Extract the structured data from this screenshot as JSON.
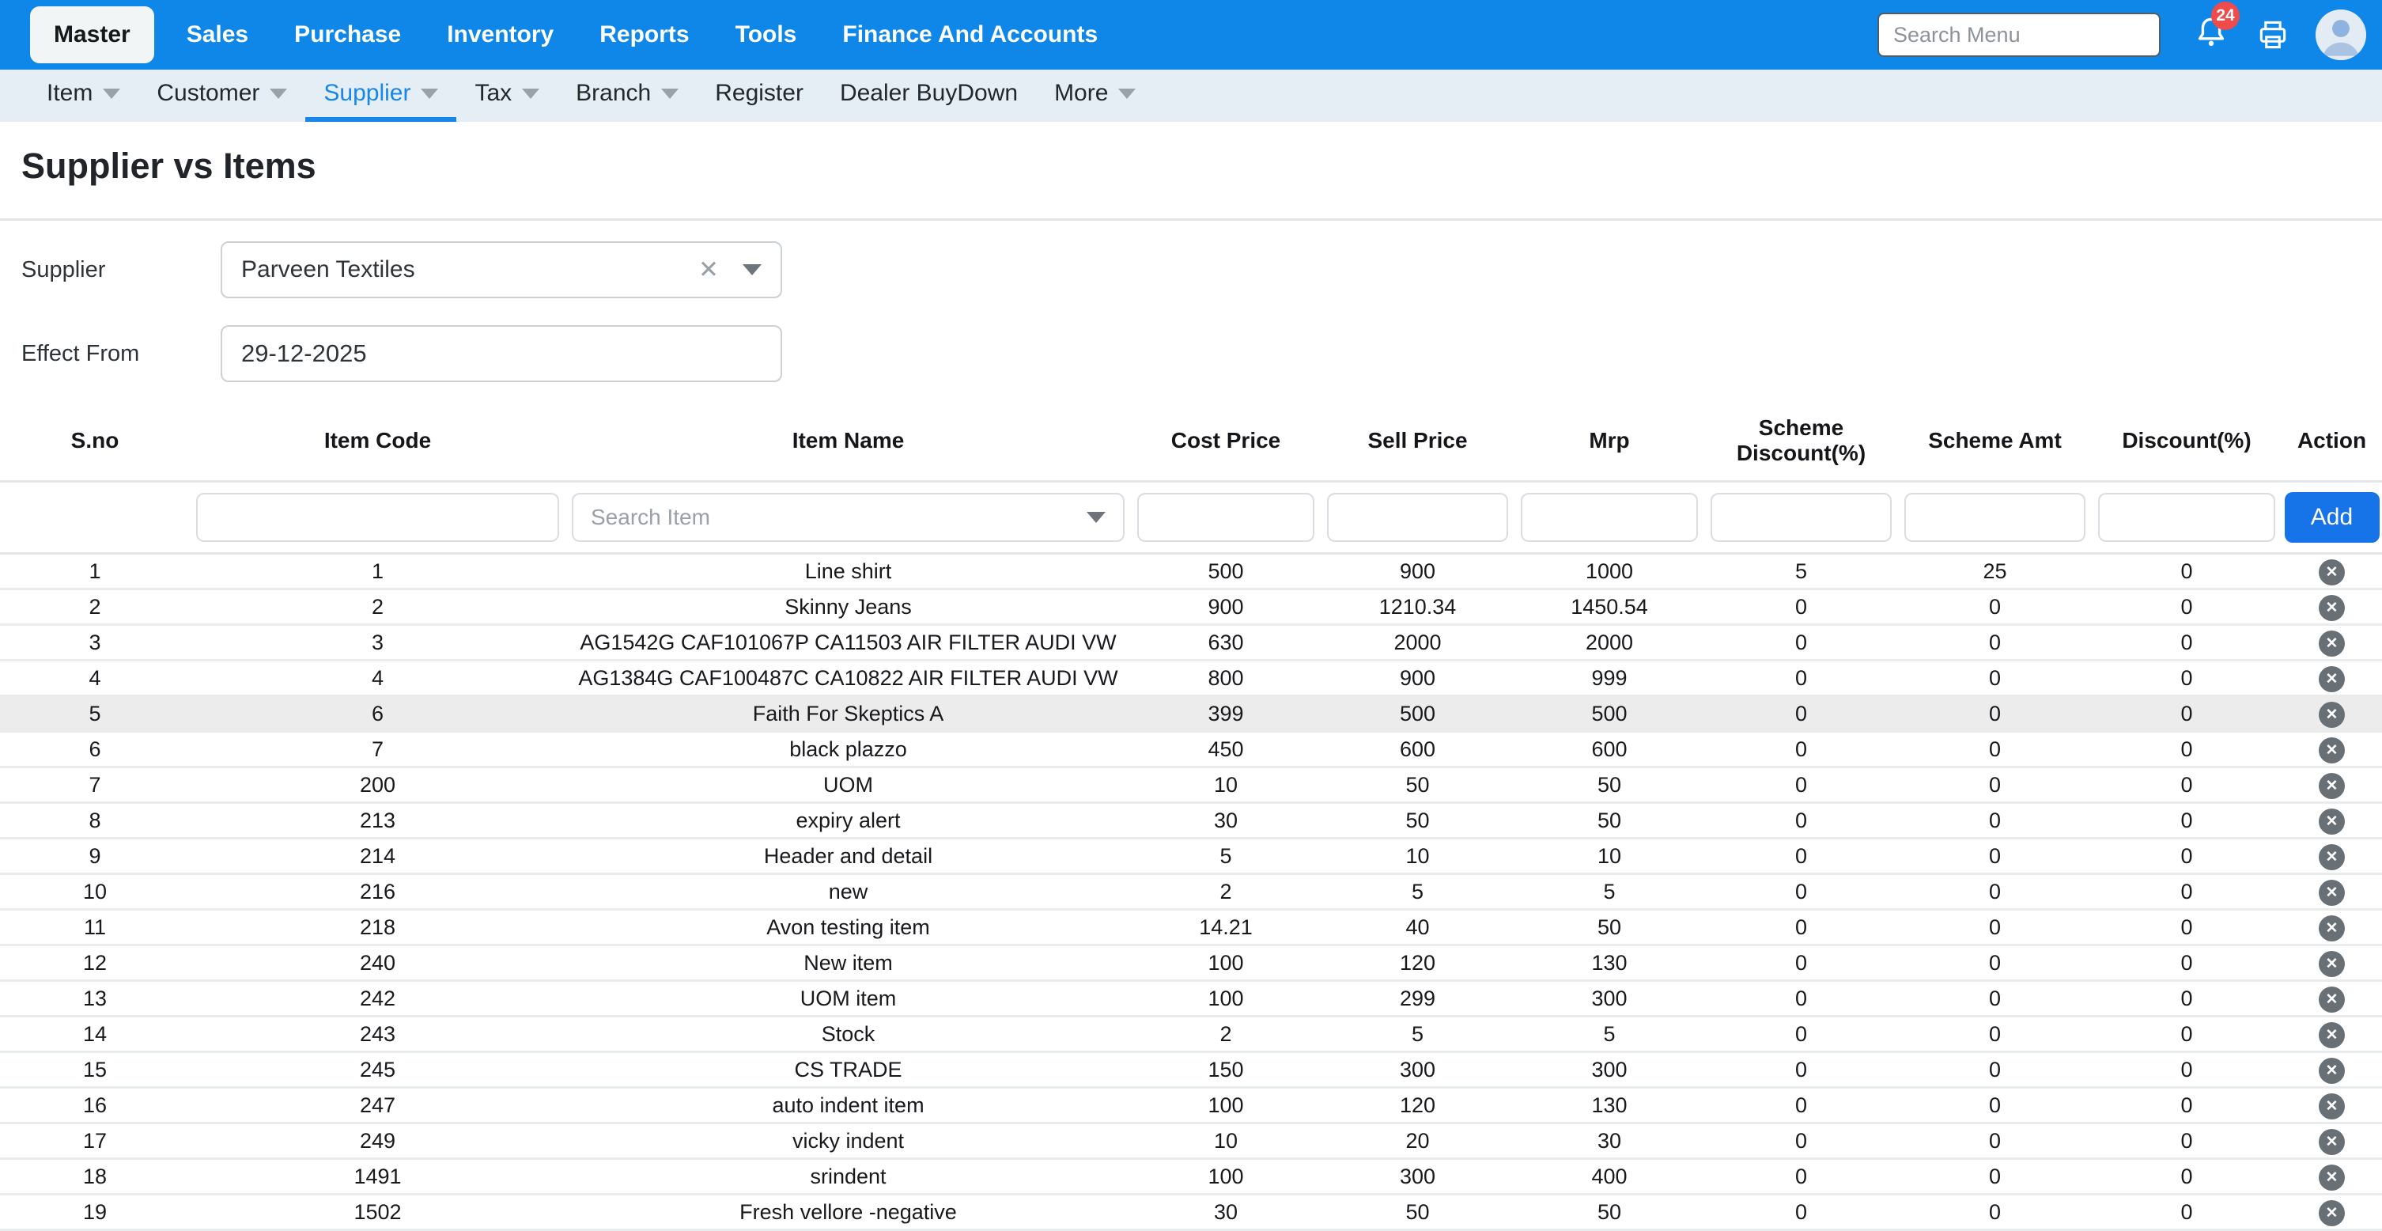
{
  "topnav": {
    "items": [
      {
        "label": "Master",
        "active": true
      },
      {
        "label": "Sales"
      },
      {
        "label": "Purchase"
      },
      {
        "label": "Inventory"
      },
      {
        "label": "Reports"
      },
      {
        "label": "Tools"
      },
      {
        "label": "Finance And Accounts"
      }
    ],
    "search_placeholder": "Search Menu",
    "notification_count": "24"
  },
  "subnav": {
    "items": [
      {
        "label": "Item",
        "caret": true
      },
      {
        "label": "Customer",
        "caret": true
      },
      {
        "label": "Supplier",
        "caret": true,
        "active": true
      },
      {
        "label": "Tax",
        "caret": true
      },
      {
        "label": "Branch",
        "caret": true
      },
      {
        "label": "Register",
        "caret": false
      },
      {
        "label": "Dealer BuyDown",
        "caret": false
      },
      {
        "label": "More",
        "caret": true
      }
    ]
  },
  "page": {
    "title": "Supplier vs Items"
  },
  "form": {
    "supplier_label": "Supplier",
    "supplier_value": "Parveen Textiles",
    "effect_from_label": "Effect From",
    "effect_from_value": "29-12-2025"
  },
  "table": {
    "columns": [
      "S.no",
      "Item Code",
      "Item Name",
      "Cost Price",
      "Sell Price",
      "Mrp",
      "Scheme Discount(%)",
      "Scheme Amt",
      "Discount(%)",
      "Action"
    ],
    "filter": {
      "search_item_placeholder": "Search Item",
      "add_label": "Add"
    },
    "highlighted_row_index": 4,
    "rows": [
      [
        "1",
        "1",
        "Line shirt",
        "500",
        "900",
        "1000",
        "5",
        "25",
        "0"
      ],
      [
        "2",
        "2",
        "Skinny Jeans",
        "900",
        "1210.34",
        "1450.54",
        "0",
        "0",
        "0"
      ],
      [
        "3",
        "3",
        "AG1542G CAF101067P CA11503 AIR FILTER AUDI VW",
        "630",
        "2000",
        "2000",
        "0",
        "0",
        "0"
      ],
      [
        "4",
        "4",
        "AG1384G CAF100487C CA10822 AIR FILTER AUDI VW",
        "800",
        "900",
        "999",
        "0",
        "0",
        "0"
      ],
      [
        "5",
        "6",
        "Faith For Skeptics A",
        "399",
        "500",
        "500",
        "0",
        "0",
        "0"
      ],
      [
        "6",
        "7",
        "black plazzo",
        "450",
        "600",
        "600",
        "0",
        "0",
        "0"
      ],
      [
        "7",
        "200",
        "UOM",
        "10",
        "50",
        "50",
        "0",
        "0",
        "0"
      ],
      [
        "8",
        "213",
        "expiry alert",
        "30",
        "50",
        "50",
        "0",
        "0",
        "0"
      ],
      [
        "9",
        "214",
        "Header and detail",
        "5",
        "10",
        "10",
        "0",
        "0",
        "0"
      ],
      [
        "10",
        "216",
        "new",
        "2",
        "5",
        "5",
        "0",
        "0",
        "0"
      ],
      [
        "11",
        "218",
        "Avon testing item",
        "14.21",
        "40",
        "50",
        "0",
        "0",
        "0"
      ],
      [
        "12",
        "240",
        "New item",
        "100",
        "120",
        "130",
        "0",
        "0",
        "0"
      ],
      [
        "13",
        "242",
        "UOM item",
        "100",
        "299",
        "300",
        "0",
        "0",
        "0"
      ],
      [
        "14",
        "243",
        "Stock",
        "2",
        "5",
        "5",
        "0",
        "0",
        "0"
      ],
      [
        "15",
        "245",
        "CS TRADE",
        "150",
        "300",
        "300",
        "0",
        "0",
        "0"
      ],
      [
        "16",
        "247",
        "auto indent item",
        "100",
        "120",
        "130",
        "0",
        "0",
        "0"
      ],
      [
        "17",
        "249",
        "vicky indent",
        "10",
        "20",
        "30",
        "0",
        "0",
        "0"
      ],
      [
        "18",
        "1491",
        "srindent",
        "100",
        "300",
        "400",
        "0",
        "0",
        "0"
      ],
      [
        "19",
        "1502",
        "Fresh vellore -negative",
        "30",
        "50",
        "50",
        "0",
        "0",
        "0"
      ]
    ]
  },
  "icons": {
    "bell": "bell-icon",
    "printer": "printer-icon",
    "avatar": "user-avatar",
    "clear_glyph": "✕",
    "remove_glyph": "✕"
  },
  "colors": {
    "topbar": "#0e87e8",
    "accent": "#1787ea",
    "add-button": "#1673e8",
    "badge": "#ef4b4b",
    "subnav-bg": "#e4eef4",
    "row-highlight": "#ececec",
    "remove-icon": "#686f75"
  }
}
